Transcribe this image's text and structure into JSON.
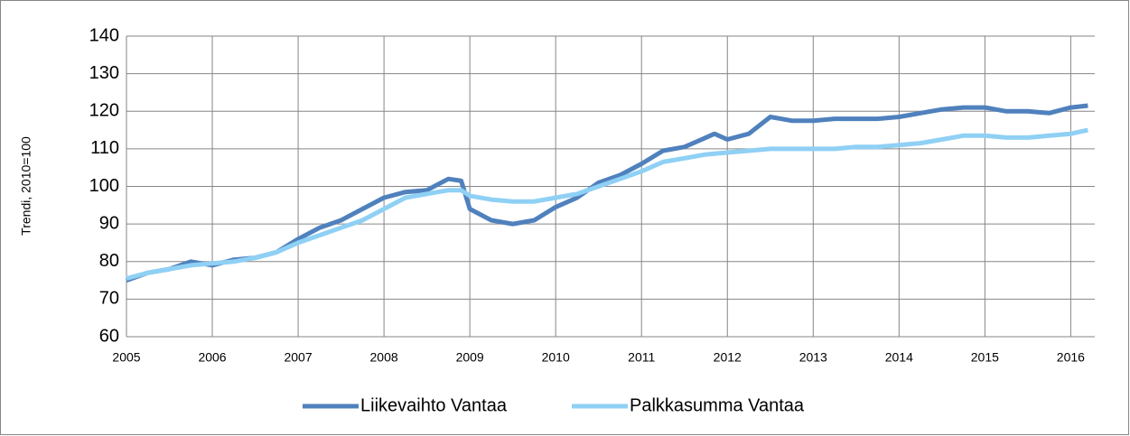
{
  "chart_data": {
    "type": "line",
    "ylabel": "Trendi, 2010=100",
    "x": [
      2005,
      2005.25,
      2005.5,
      2005.75,
      2006,
      2006.25,
      2006.5,
      2006.75,
      2007,
      2007.25,
      2007.5,
      2007.75,
      2008,
      2008.25,
      2008.5,
      2008.75,
      2008.9,
      2009,
      2009.25,
      2009.5,
      2009.75,
      2010,
      2010.25,
      2010.5,
      2010.75,
      2011,
      2011.25,
      2011.5,
      2011.75,
      2011.85,
      2012,
      2012.25,
      2012.5,
      2012.75,
      2013,
      2013.25,
      2013.5,
      2013.75,
      2014,
      2014.25,
      2014.5,
      2014.75,
      2015,
      2015.25,
      2015.5,
      2015.75,
      2016,
      2016.2
    ],
    "series": [
      {
        "name": "Liikevaihto Vantaa",
        "color": "#4f81bd",
        "values": [
          75,
          77,
          78,
          80,
          79,
          80.5,
          81,
          82.5,
          86,
          89,
          91,
          94,
          97,
          98.5,
          99,
          102,
          101.5,
          94,
          91,
          90,
          91,
          94.5,
          97,
          101,
          103,
          106,
          109.5,
          110.5,
          113,
          114,
          112.5,
          114,
          118.5,
          117.5,
          117.5,
          118,
          118,
          118,
          118.5,
          119.5,
          120.5,
          121,
          121,
          120,
          120,
          119.5,
          121,
          121.5
        ]
      },
      {
        "name": "Palkkasumma Vantaa",
        "color": "#8fd0f5",
        "values": [
          75.5,
          77,
          78,
          79,
          79.5,
          80,
          81,
          82.5,
          85,
          87,
          89,
          91,
          94,
          97,
          98,
          99,
          99,
          97.5,
          96.5,
          96,
          96,
          97,
          98,
          100,
          102,
          104,
          106.5,
          107.5,
          108.5,
          108.7,
          109,
          109.5,
          110,
          110,
          110,
          110,
          110.5,
          110.5,
          111,
          111.5,
          112.5,
          113.5,
          113.5,
          113,
          113,
          113.5,
          114,
          115
        ]
      }
    ],
    "xlim": [
      2005,
      2016.28
    ],
    "xticks": [
      2005,
      2006,
      2007,
      2008,
      2009,
      2010,
      2011,
      2012,
      2013,
      2014,
      2015,
      2016
    ],
    "ylim": [
      60,
      140
    ],
    "yticks": [
      60,
      70,
      80,
      90,
      100,
      110,
      120,
      130,
      140
    ],
    "grid": true,
    "legend": "bottom"
  }
}
